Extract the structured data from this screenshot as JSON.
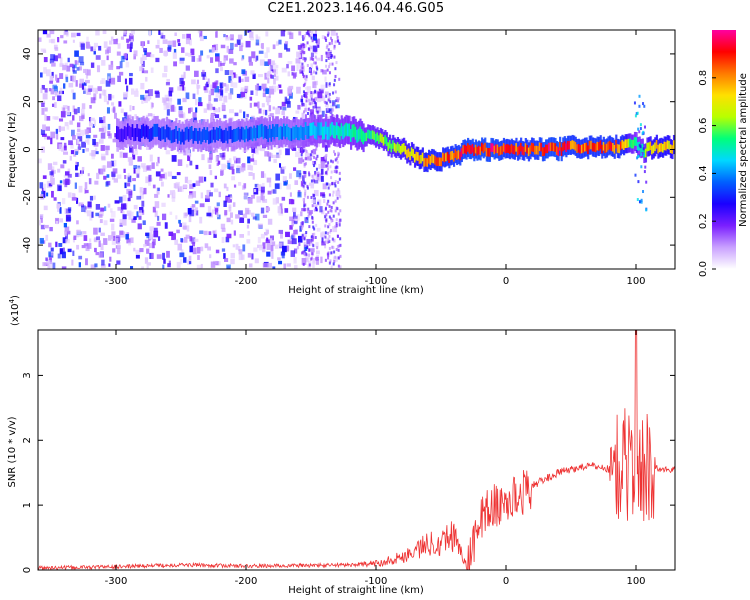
{
  "title": "C2E1.2023.146.04.46.G05",
  "chart_data": [
    {
      "type": "heatmap",
      "xlabel": "Height of straight line (km)",
      "ylabel": "Frequency (Hz)",
      "xlim": [
        -360,
        130
      ],
      "ylim": [
        -50,
        50
      ],
      "xticks": [
        -300,
        -200,
        -100,
        0,
        100
      ],
      "yticks": [
        -40,
        -20,
        0,
        20,
        40
      ],
      "colorbar": {
        "label": "Normalized spectral amplitude",
        "range": [
          0,
          1
        ],
        "ticks": [
          0.0,
          0.2,
          0.4,
          0.6,
          0.8
        ],
        "colormap": [
          "#ffffff",
          "#c9a0ff",
          "#7a1fff",
          "#1a00ff",
          "#0060ff",
          "#00d8ff",
          "#00ff7a",
          "#b8ff00",
          "#ffe000",
          "#ff7a00",
          "#ff0000",
          "#ff00a0"
        ]
      },
      "ridge": {
        "heights": [
          -290,
          -270,
          -250,
          -230,
          -210,
          -190,
          -170,
          -160,
          -150,
          -130,
          -110,
          -100,
          -90,
          -80,
          -70,
          -60,
          -50,
          -40,
          -30,
          -20,
          -10,
          0,
          10,
          20,
          30,
          40,
          50,
          60,
          70,
          80,
          90,
          95,
          100,
          105,
          110,
          120,
          130
        ],
        "frequency_hz": [
          7,
          7,
          6,
          6,
          6,
          7,
          7,
          7,
          8,
          8,
          6,
          5,
          2,
          0,
          -3,
          -5,
          -4,
          -3,
          0,
          0,
          0,
          0,
          0,
          0,
          0,
          0,
          1,
          1,
          1,
          1,
          1,
          3,
          2,
          -1,
          1,
          1,
          1
        ],
        "amplitude": [
          0.25,
          0.35,
          0.35,
          0.35,
          0.35,
          0.4,
          0.4,
          0.4,
          0.45,
          0.5,
          0.55,
          0.6,
          0.65,
          0.7,
          0.75,
          0.85,
          0.85,
          0.9,
          0.95,
          0.95,
          0.95,
          0.9,
          0.9,
          0.9,
          0.95,
          0.95,
          0.9,
          0.9,
          0.9,
          0.9,
          0.85,
          0.6,
          0.5,
          0.55,
          0.75,
          0.8,
          0.75
        ]
      }
    },
    {
      "type": "line",
      "xlabel": "Height of straight line (km)",
      "ylabel": "SNR (10 * v/v)",
      "y_multiplier": "(x10",
      "y_multiplier_exp": "4",
      "xlim": [
        -360,
        130
      ],
      "ylim": [
        0,
        3.7
      ],
      "xticks": [
        -300,
        -200,
        -100,
        0,
        100
      ],
      "yticks": [
        0,
        1,
        2,
        3
      ],
      "series": [
        {
          "color": "#ee3333",
          "x": [
            -360,
            -300,
            -250,
            -200,
            -150,
            -120,
            -100,
            -80,
            -60,
            -50,
            -40,
            -35,
            -30,
            -25,
            -20,
            -15,
            -10,
            -5,
            0,
            10,
            20,
            30,
            40,
            50,
            60,
            70,
            80,
            90,
            95,
            100,
            105,
            110,
            120,
            130
          ],
          "y": [
            0.03,
            0.05,
            0.08,
            0.06,
            0.07,
            0.08,
            0.1,
            0.2,
            0.4,
            0.45,
            0.55,
            0.3,
            0.05,
            0.35,
            0.8,
            0.9,
            1.0,
            0.95,
            1.05,
            1.15,
            1.3,
            1.4,
            1.5,
            1.55,
            1.6,
            1.6,
            1.55,
            1.6,
            1.65,
            1.7,
            1.55,
            1.6,
            1.55,
            1.55
          ]
        }
      ],
      "peak": {
        "x": 100,
        "y": 3.7
      }
    }
  ]
}
